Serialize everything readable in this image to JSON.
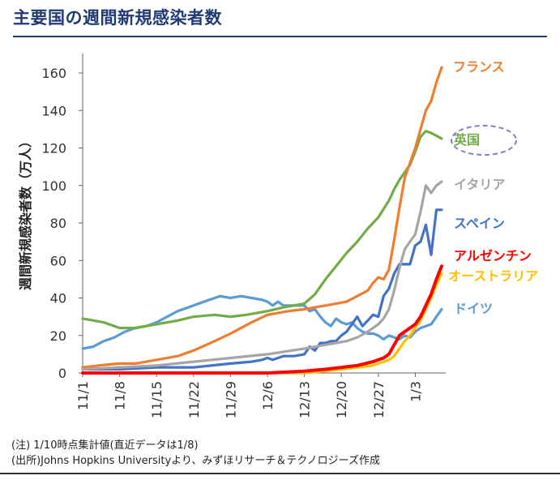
{
  "title": "主要国の週間新規感染者数",
  "notes": {
    "note1": "(注) 1/10時点集計値(直近データは1/8)",
    "note2": "(出所)Johns Hopkins Universityより、みずほリサーチ＆テクノロジーズ作成"
  },
  "chart_data": {
    "type": "line",
    "title": "",
    "ylabel": "週間新規感染者数（万人）",
    "xlabel": "",
    "ylim": [
      0,
      160
    ],
    "yticks": [
      0,
      20,
      40,
      60,
      80,
      100,
      120,
      140,
      160
    ],
    "x_tick_labels": [
      "11/1",
      "11/8",
      "11/15",
      "11/22",
      "11/29",
      "12/6",
      "12/13",
      "12/20",
      "12/27",
      "1/3"
    ],
    "x_tick_days": [
      0,
      7,
      14,
      21,
      28,
      35,
      42,
      49,
      56,
      63
    ],
    "x_range_days": [
      0,
      68
    ],
    "grid": false,
    "legend": "labels at line ends",
    "highlight": "英国",
    "series": [
      {
        "name": "フランス",
        "color": "#ed7d31",
        "x": [
          0,
          3,
          7,
          10,
          14,
          18,
          21,
          25,
          28,
          32,
          35,
          39,
          42,
          44,
          46,
          48,
          50,
          52,
          54,
          55,
          56,
          57,
          58,
          59,
          60,
          61,
          62,
          63,
          64,
          65,
          66,
          67,
          68
        ],
        "y": [
          3,
          4,
          5,
          5,
          7,
          9,
          12,
          17,
          21,
          27,
          31,
          33,
          34,
          35,
          36,
          37,
          38,
          41,
          44,
          48,
          51,
          50,
          55,
          71,
          88,
          104,
          112,
          120,
          130,
          140,
          145,
          155,
          163
        ]
      },
      {
        "name": "英国",
        "color": "#70ad47",
        "x": [
          0,
          4,
          7,
          10,
          14,
          18,
          21,
          25,
          28,
          31,
          35,
          38,
          42,
          44,
          46,
          48,
          50,
          52,
          54,
          56,
          58,
          59,
          60,
          61,
          62,
          63,
          64,
          65,
          66,
          68
        ],
        "y": [
          29,
          27,
          24,
          24,
          26,
          28,
          30,
          31,
          30,
          31,
          33,
          35,
          37,
          42,
          50,
          57,
          64,
          70,
          77,
          83,
          92,
          98,
          103,
          107,
          111,
          118,
          126,
          129,
          128,
          125
        ]
      },
      {
        "name": "イタリア",
        "color": "#a5a5a5",
        "x": [
          0,
          7,
          14,
          21,
          28,
          35,
          42,
          44,
          46,
          48,
          50,
          52,
          54,
          55,
          56,
          57,
          58,
          59,
          60,
          61,
          62,
          63,
          64,
          65,
          66,
          67,
          68
        ],
        "y": [
          2,
          3,
          4,
          6,
          8,
          10,
          13,
          14,
          15,
          16,
          17,
          19,
          22,
          24,
          26,
          29,
          34,
          44,
          56,
          66,
          70,
          74,
          86,
          100,
          96,
          100,
          102
        ]
      },
      {
        "name": "スペイン",
        "color": "#4472c4",
        "x": [
          0,
          7,
          14,
          21,
          28,
          32,
          34,
          35,
          36,
          37,
          38,
          40,
          42,
          43,
          44,
          45,
          46,
          47,
          48,
          49,
          50,
          51,
          52,
          53,
          54,
          55,
          56,
          57,
          58,
          59,
          60,
          61,
          62,
          63,
          64,
          65,
          66,
          67,
          68
        ],
        "y": [
          2,
          2,
          3,
          3,
          5,
          6,
          7,
          8,
          7,
          8,
          9,
          9,
          10,
          14,
          12,
          16,
          16,
          17,
          17,
          20,
          22,
          26,
          30,
          25,
          28,
          31,
          30,
          41,
          45,
          53,
          58,
          58,
          58,
          68,
          70,
          79,
          63,
          87,
          87
        ]
      },
      {
        "name": "アルゼンチン",
        "color": "#ff0000",
        "x": [
          0,
          7,
          14,
          21,
          28,
          35,
          42,
          46,
          49,
          52,
          55,
          56,
          57,
          58,
          59,
          60,
          61,
          62,
          63,
          64,
          65,
          66,
          67,
          68
        ],
        "y": [
          0,
          0,
          0,
          0,
          0,
          0,
          1,
          2,
          3,
          4,
          6,
          7,
          8,
          10,
          15,
          20,
          22,
          24,
          26,
          30,
          36,
          42,
          50,
          57
        ]
      },
      {
        "name": "オーストラリア",
        "color": "#ffc000",
        "x": [
          0,
          7,
          14,
          21,
          28,
          35,
          42,
          46,
          49,
          52,
          55,
          56,
          57,
          58,
          59,
          60,
          61,
          62,
          63,
          64,
          65,
          66,
          67,
          68
        ],
        "y": [
          0,
          0,
          0,
          0,
          0,
          0,
          0,
          1,
          2,
          3,
          4,
          5,
          6,
          7,
          9,
          13,
          17,
          20,
          24,
          28,
          34,
          40,
          47,
          53
        ]
      },
      {
        "name": "ドイツ",
        "color": "#5b9bd5",
        "x": [
          0,
          2,
          4,
          6,
          8,
          10,
          12,
          14,
          16,
          18,
          20,
          22,
          24,
          26,
          28,
          30,
          32,
          34,
          35,
          36,
          37,
          38,
          40,
          42,
          43,
          44,
          45,
          46,
          47,
          48,
          49,
          50,
          51,
          52,
          53,
          54,
          55,
          56,
          57,
          58,
          59,
          60,
          61,
          62,
          63,
          64,
          65,
          66,
          67,
          68
        ],
        "y": [
          13,
          14,
          17,
          19,
          22,
          24,
          25,
          27,
          30,
          33,
          35,
          37,
          39,
          41,
          40,
          41,
          40,
          39,
          38,
          36,
          38,
          36,
          36,
          36,
          33,
          34,
          30,
          27,
          25,
          29,
          27,
          26,
          27,
          24,
          22,
          21,
          21,
          20,
          18,
          20,
          19,
          18,
          20,
          19,
          22,
          24,
          25,
          26,
          30,
          34
        ]
      }
    ]
  }
}
